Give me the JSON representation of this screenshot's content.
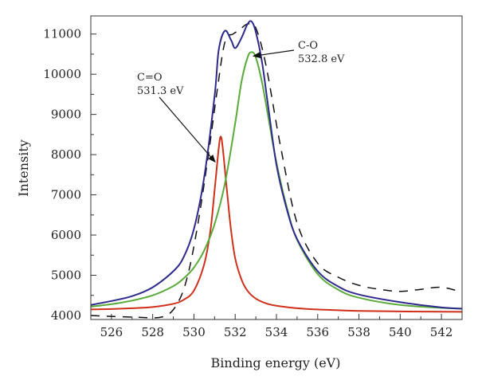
{
  "chart_data": {
    "type": "line",
    "title": "",
    "xlabel": "Binding energy (eV)",
    "ylabel": "Intensity",
    "xlim": [
      525,
      543
    ],
    "ylim": [
      3900,
      11450
    ],
    "xticks": [
      526,
      528,
      530,
      532,
      534,
      536,
      538,
      540,
      542
    ],
    "yticks": [
      4000,
      5000,
      6000,
      7000,
      8000,
      9000,
      10000,
      11000
    ],
    "grid": false,
    "legend": "none",
    "colors": {
      "envelope": "#2e2a8c",
      "co_single": "#5aaa3a",
      "co_double": "#d0301a",
      "raw": "#111111"
    },
    "annotations": [
      {
        "line1": "C=O",
        "line2": "531.3 eV",
        "x": 531.3,
        "y": 8450
      },
      {
        "line1": "C-O",
        "line2": "532.8 eV",
        "x": 532.8,
        "y": 10550
      }
    ],
    "series": [
      {
        "style": "solid",
        "color": "#2e2a8c",
        "x": [
          525,
          526,
          527,
          528,
          529,
          529.5,
          530,
          530.5,
          531,
          531.2,
          531.5,
          531.8,
          532,
          532.3,
          532.6,
          532.8,
          533,
          533.3,
          533.6,
          534,
          534.5,
          535,
          536,
          537,
          538,
          540,
          542,
          543
        ],
        "y": [
          4260,
          4360,
          4480,
          4700,
          5100,
          5450,
          6150,
          7450,
          9450,
          10600,
          11080,
          10850,
          10650,
          10900,
          11250,
          11310,
          11050,
          10300,
          9200,
          7750,
          6650,
          5900,
          5100,
          4720,
          4520,
          4330,
          4200,
          4170
        ]
      },
      {
        "style": "solid",
        "color": "#5aaa3a",
        "x": [
          525,
          526,
          527,
          528,
          529,
          529.5,
          530,
          530.5,
          531,
          531.5,
          532,
          532.3,
          532.6,
          532.8,
          533,
          533.3,
          533.6,
          534,
          534.5,
          535,
          536,
          537,
          538,
          540,
          542,
          543
        ],
        "y": [
          4220,
          4280,
          4370,
          4500,
          4730,
          4920,
          5190,
          5620,
          6270,
          7280,
          8780,
          9800,
          10420,
          10550,
          10420,
          9800,
          8950,
          7800,
          6700,
          5880,
          5030,
          4640,
          4440,
          4260,
          4190,
          4170
        ]
      },
      {
        "style": "solid",
        "color": "#d0301a",
        "x": [
          525,
          526,
          527,
          528,
          529,
          529.5,
          530,
          530.5,
          530.8,
          531,
          531.2,
          531.3,
          531.4,
          531.6,
          531.8,
          532,
          532.3,
          532.6,
          533,
          533.5,
          534,
          535,
          536,
          537,
          538,
          540,
          543
        ],
        "y": [
          4150,
          4160,
          4180,
          4210,
          4290,
          4390,
          4620,
          5280,
          6120,
          7100,
          8150,
          8450,
          8150,
          7100,
          6120,
          5420,
          4900,
          4610,
          4420,
          4300,
          4240,
          4180,
          4150,
          4130,
          4115,
          4100,
          4090
        ]
      },
      {
        "style": "dashed",
        "color": "#111111",
        "x": [
          525,
          527,
          528.5,
          529.2,
          529.7,
          530.2,
          530.7,
          531.1,
          531.5,
          531.9,
          532.2,
          532.6,
          533,
          533.5,
          534.2,
          535,
          536,
          537,
          538,
          539,
          540,
          541,
          542,
          543
        ],
        "y": [
          4000,
          3960,
          3970,
          4300,
          5000,
          6300,
          8000,
          9500,
          10800,
          11000,
          11100,
          11250,
          11150,
          10200,
          8200,
          6300,
          5300,
          4950,
          4750,
          4650,
          4600,
          4650,
          4700,
          4580
        ]
      }
    ]
  }
}
